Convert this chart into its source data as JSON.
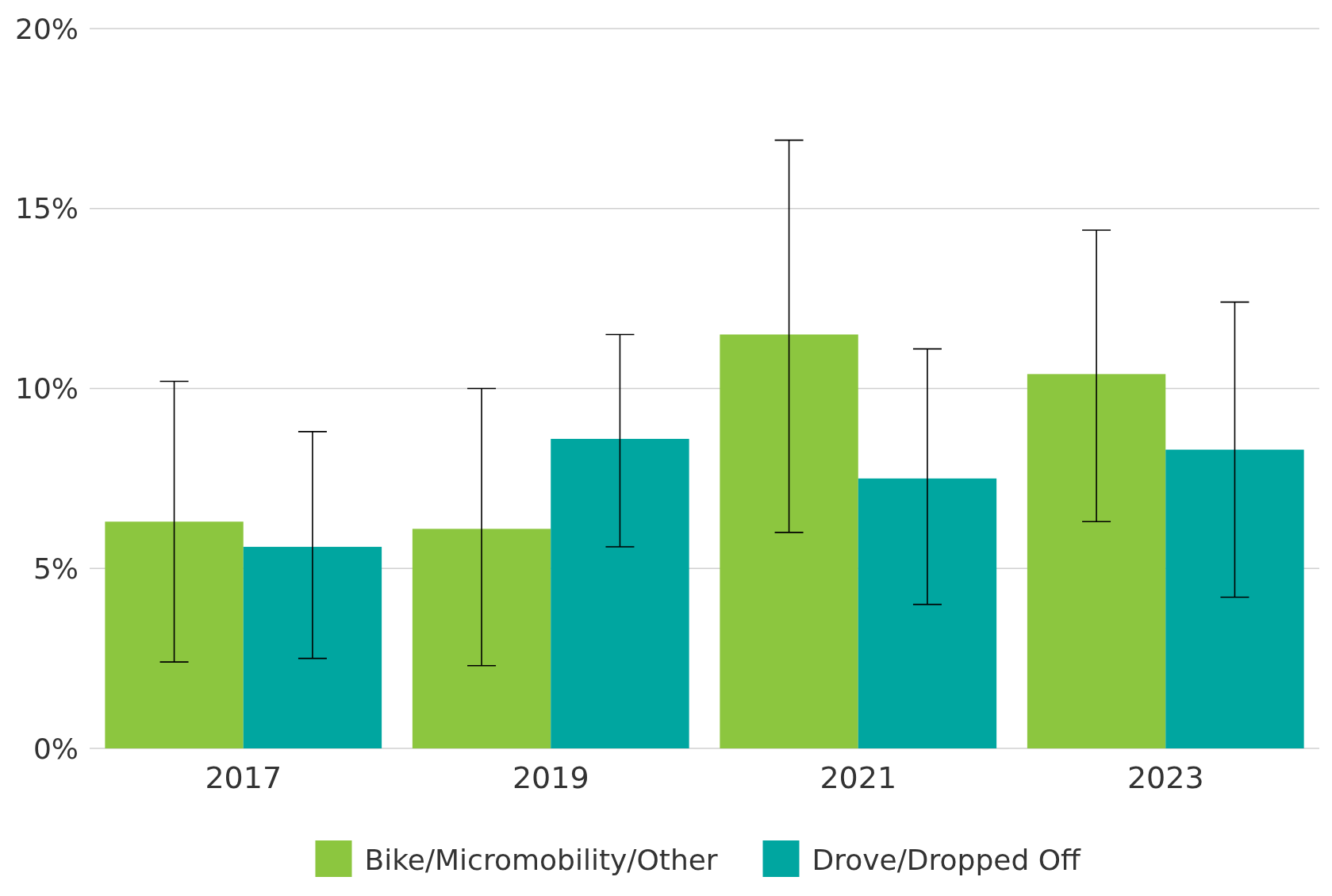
{
  "chart_data": {
    "type": "bar",
    "categories": [
      "2017",
      "2019",
      "2021",
      "2023"
    ],
    "series": [
      {
        "name": "Bike/Micromobility/Other",
        "color": "#8cc63f",
        "values": [
          6.3,
          6.1,
          11.5,
          10.4
        ],
        "errors": [
          [
            2.4,
            10.2
          ],
          [
            2.3,
            10.0
          ],
          [
            6.0,
            16.9
          ],
          [
            6.3,
            14.4
          ]
        ]
      },
      {
        "name": "Drove/Dropped Off",
        "color": "#00a6a0",
        "values": [
          5.6,
          8.6,
          7.5,
          8.3
        ],
        "errors": [
          [
            2.5,
            8.8
          ],
          [
            5.6,
            11.5
          ],
          [
            4.0,
            11.1
          ],
          [
            4.2,
            12.4
          ]
        ]
      }
    ],
    "ylim": [
      0,
      20
    ],
    "yticks": [
      {
        "value": 0,
        "label": "0%"
      },
      {
        "value": 5,
        "label": "5%"
      },
      {
        "value": 10,
        "label": "10%"
      },
      {
        "value": 15,
        "label": "15%"
      },
      {
        "value": 20,
        "label": "20%"
      }
    ],
    "grid": "y",
    "legend": "bottom"
  }
}
